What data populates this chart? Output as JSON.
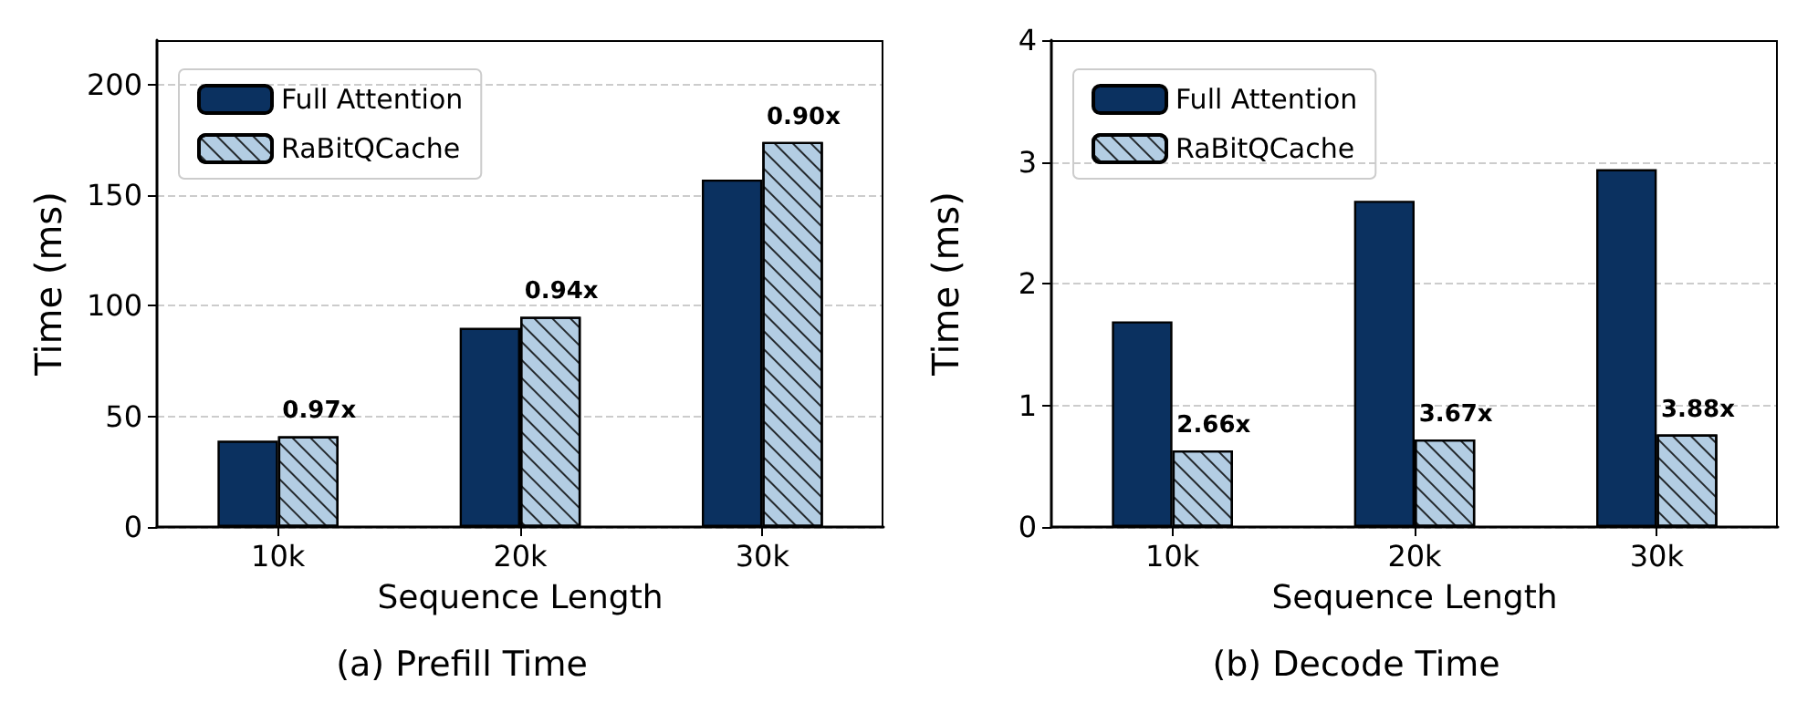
{
  "chart_data": [
    {
      "type": "bar",
      "title": "(a) Prefill Time",
      "xlabel": "Sequence Length",
      "ylabel": "Time (ms)",
      "categories": [
        "10k",
        "20k",
        "30k"
      ],
      "series": [
        {
          "name": "Full Attention",
          "color": "#0b3160",
          "values": [
            39,
            90,
            157
          ]
        },
        {
          "name": "RaBitQCache",
          "color": "#b3cde3",
          "values": [
            41,
            95,
            174
          ]
        }
      ],
      "annotations": [
        {
          "text": "0.97x",
          "x": "10k",
          "y": 41
        },
        {
          "text": "0.94x",
          "x": "20k",
          "y": 95
        },
        {
          "text": "0.90x",
          "x": "30k",
          "y": 174
        }
      ],
      "ylim": [
        0,
        220
      ],
      "yticks": [
        0,
        50,
        100,
        150,
        200
      ],
      "grid": "y",
      "legend": "top left"
    },
    {
      "type": "bar",
      "title": "(b) Decode Time",
      "xlabel": "Sequence Length",
      "ylabel": "Time (ms)",
      "categories": [
        "10k",
        "20k",
        "30k"
      ],
      "series": [
        {
          "name": "Full Attention",
          "color": "#0b3160",
          "values": [
            1.69,
            2.68,
            2.94
          ]
        },
        {
          "name": "RaBitQCache",
          "color": "#b3cde3",
          "values": [
            0.63,
            0.72,
            0.76
          ]
        }
      ],
      "annotations": [
        {
          "text": "2.66x",
          "x": "10k",
          "y": 0.63
        },
        {
          "text": "3.67x",
          "x": "20k",
          "y": 0.72
        },
        {
          "text": "3.88x",
          "x": "30k",
          "y": 0.76
        }
      ],
      "ylim": [
        0,
        4
      ],
      "yticks": [
        0,
        1,
        2,
        3,
        4
      ],
      "grid": "y",
      "legend": "top left"
    }
  ]
}
